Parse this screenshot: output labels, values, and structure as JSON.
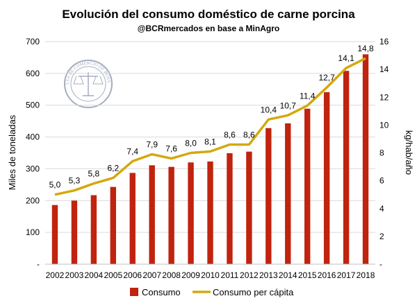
{
  "chart_data": {
    "type": "bar",
    "title": "Evolución del consumo doméstico de carne porcina",
    "subtitle": "@BCRmercados en base a MinAgro",
    "watermark_text": "BOLSA DE COMERCIO DE ROSARIO",
    "categories": [
      "2002",
      "2003",
      "2004",
      "2005",
      "2006",
      "2007",
      "2008",
      "2009",
      "2010",
      "2011",
      "2012",
      "2013",
      "2014",
      "2015",
      "2016",
      "2017",
      "2018"
    ],
    "series": [
      {
        "name": "Consumo",
        "type": "bar",
        "axis": "left",
        "color": "#c0230e",
        "values": [
          186,
          200,
          217,
          243,
          287,
          311,
          306,
          320,
          323,
          349,
          354,
          428,
          443,
          489,
          541,
          608,
          660
        ]
      },
      {
        "name": "Consumo per cápita",
        "type": "line",
        "axis": "right",
        "color": "#d4a80e",
        "values": [
          5.0,
          5.3,
          5.8,
          6.2,
          7.4,
          7.9,
          7.6,
          8.0,
          8.1,
          8.6,
          8.6,
          10.4,
          10.7,
          11.4,
          12.7,
          14.1,
          14.8
        ],
        "labels": [
          "5,0",
          "5,3",
          "5,8",
          "6,2",
          "7,4",
          "7,9",
          "7,6",
          "8,0",
          "8,1",
          "8,6",
          "8,6",
          "10,4",
          "10,7",
          "11,4",
          "12,7",
          "14,1",
          "14,8"
        ]
      }
    ],
    "ylabel": "Miles de toneladas",
    "ylim": [
      0,
      700
    ],
    "yticks": [
      0,
      100,
      200,
      300,
      400,
      500,
      600,
      700
    ],
    "ytick_labels": [
      "-",
      "100",
      "200",
      "300",
      "400",
      "500",
      "600",
      "700"
    ],
    "y2label": "kg/hab/año",
    "y2lim": [
      0,
      16
    ],
    "y2ticks": [
      0,
      2,
      4,
      6,
      8,
      10,
      12,
      14,
      16
    ],
    "y2tick_labels": [
      "-",
      "2",
      "4",
      "6",
      "8",
      "10",
      "12",
      "14",
      "16"
    ],
    "grid": true,
    "legend_position": "bottom"
  }
}
